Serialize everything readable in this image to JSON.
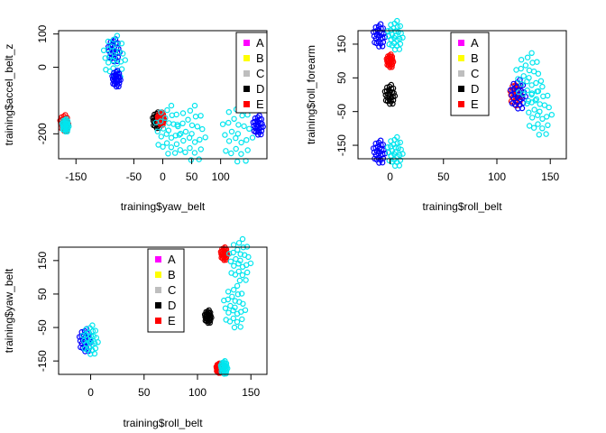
{
  "legend_entries": [
    {
      "label": "A",
      "color": "#ff00ff"
    },
    {
      "label": "B",
      "color": "#ffff00"
    },
    {
      "label": "C",
      "color": "#bebebe"
    },
    {
      "label": "D",
      "color": "#000000"
    },
    {
      "label": "E",
      "color": "#ff0000"
    }
  ],
  "chart_data": [
    {
      "type": "scatter",
      "xlabel": "training$yaw_belt",
      "ylabel": "training$accel_belt_z",
      "xlim": [
        -180,
        180
      ],
      "ylim": [
        -275,
        110
      ],
      "xticks": [
        "-150",
        "-50",
        "0",
        "50",
        "100"
      ],
      "xtick_values": [
        -150,
        -50,
        0,
        50,
        100
      ],
      "yticks": [
        "100",
        "0",
        "-200"
      ],
      "ytick_values": [
        100,
        0,
        -200
      ],
      "legend": "top-right",
      "clusters": [
        {
          "x": -170,
          "y": -168,
          "color": "#ff0000",
          "size": 10
        },
        {
          "x": -168,
          "y": -175,
          "color": "#00e5ee",
          "size": 8
        },
        {
          "x": -84,
          "y": 50,
          "color": "#0000ff",
          "size": 14
        },
        {
          "x": -83,
          "y": 30,
          "color": "#00e5ee",
          "size": 26
        },
        {
          "x": -80,
          "y": -35,
          "color": "#0000ff",
          "size": 10
        },
        {
          "x": -10,
          "y": -160,
          "color": "#000000",
          "size": 10
        },
        {
          "x": -3,
          "y": -155,
          "color": "#ff0000",
          "size": 8
        },
        {
          "x": 10,
          "y": -190,
          "color": "#00e5ee",
          "size": 30
        },
        {
          "x": 50,
          "y": -200,
          "color": "#00e5ee",
          "size": 34
        },
        {
          "x": 130,
          "y": -200,
          "color": "#00e5ee",
          "size": 36
        },
        {
          "x": 165,
          "y": -175,
          "color": "#0000ff",
          "size": 12
        }
      ]
    },
    {
      "type": "scatter",
      "xlabel": "training$roll_belt",
      "ylabel": "training$roll_forearm",
      "xlim": [
        -30,
        165
      ],
      "ylim": [
        -190,
        190
      ],
      "xticks": [
        "0",
        "50",
        "100",
        "150"
      ],
      "xtick_values": [
        0,
        50,
        100,
        150
      ],
      "yticks": [
        "150",
        "50",
        "-50",
        "-150"
      ],
      "ytick_values": [
        150,
        50,
        -50,
        -150
      ],
      "legend": "top-center",
      "clusters": [
        {
          "x": -10,
          "y": 175,
          "color": "#0000ff",
          "size": 14
        },
        {
          "x": 5,
          "y": 175,
          "color": "#00e5ee",
          "size": 18
        },
        {
          "x": 0,
          "y": 0,
          "color": "#000000",
          "size": 12
        },
        {
          "x": 0,
          "y": 100,
          "color": "#ff0000",
          "size": 8
        },
        {
          "x": -10,
          "y": -170,
          "color": "#0000ff",
          "size": 14
        },
        {
          "x": 5,
          "y": -170,
          "color": "#00e5ee",
          "size": 18
        },
        {
          "x": 118,
          "y": 0,
          "color": "#ff0000",
          "size": 14
        },
        {
          "x": 120,
          "y": 0,
          "color": "#0000ff",
          "size": 18
        },
        {
          "x": 130,
          "y": 50,
          "color": "#00e5ee",
          "size": 30
        },
        {
          "x": 140,
          "y": -50,
          "color": "#00e5ee",
          "size": 30
        }
      ]
    },
    {
      "type": "scatter",
      "xlabel": "training$roll_belt",
      "ylabel": "training$yaw_belt",
      "xlim": [
        -30,
        165
      ],
      "ylim": [
        -190,
        190
      ],
      "xticks": [
        "0",
        "50",
        "100",
        "150"
      ],
      "xtick_values": [
        0,
        50,
        100,
        150
      ],
      "yticks": [
        "150",
        "50",
        "-50",
        "-150"
      ],
      "ytick_values": [
        150,
        50,
        -50,
        -150
      ],
      "legend": "top-center",
      "clusters": [
        {
          "x": -5,
          "y": -89,
          "color": "#0000ff",
          "size": 14
        },
        {
          "x": 0,
          "y": -88,
          "color": "#00e5ee",
          "size": 18
        },
        {
          "x": 110,
          "y": -18,
          "color": "#000000",
          "size": 8
        },
        {
          "x": 135,
          "y": 10,
          "color": "#00e5ee",
          "size": 26
        },
        {
          "x": 125,
          "y": 170,
          "color": "#ff0000",
          "size": 8
        },
        {
          "x": 140,
          "y": 150,
          "color": "#00e5ee",
          "size": 26
        },
        {
          "x": 120,
          "y": -172,
          "color": "#ff0000",
          "size": 6
        },
        {
          "x": 125,
          "y": -170,
          "color": "#00e5ee",
          "size": 8
        }
      ]
    }
  ]
}
